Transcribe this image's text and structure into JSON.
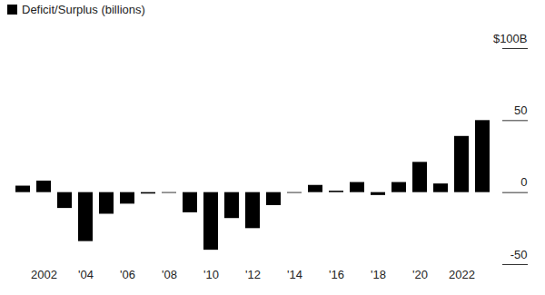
{
  "chart_data": {
    "type": "bar",
    "categories": [
      null,
      "2002",
      null,
      "'04",
      null,
      "'06",
      null,
      "'08",
      null,
      "'10",
      null,
      "'12",
      null,
      "'14",
      null,
      "'16",
      null,
      "'18",
      null,
      "'20",
      null,
      "2022",
      null
    ],
    "series": [
      {
        "name": "Deficit/Surplus (billions)",
        "color": "#000000",
        "values": [
          4.5,
          8,
          -11,
          -34,
          -15,
          -8,
          -1,
          -0.5,
          -14,
          -40,
          -18,
          -25,
          -9,
          -0.5,
          5,
          1,
          7,
          -2,
          7,
          21,
          6,
          39,
          50
        ]
      }
    ],
    "legend": "top-left",
    "ylim": [
      -50,
      100
    ],
    "yticks": [
      {
        "value": 100,
        "label": "$100B"
      },
      50,
      0,
      -50
    ],
    "grid": false
  }
}
